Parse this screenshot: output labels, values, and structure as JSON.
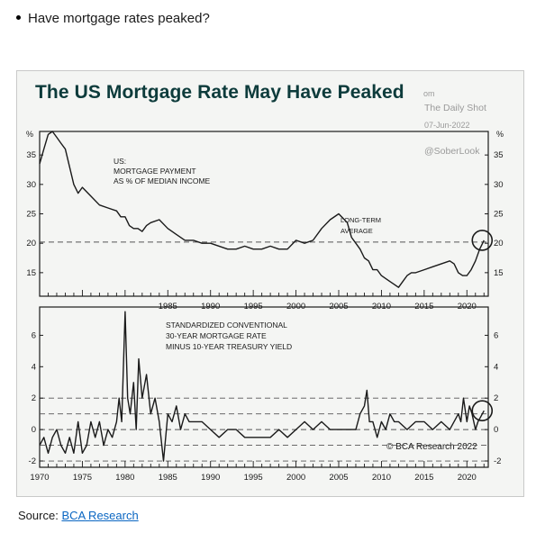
{
  "bullet": "Have mortgage rates peaked?",
  "figure": {
    "title": "The US Mortgage Rate May Have Peaked",
    "watermark": {
      "source_fragment": "om",
      "name": "The Daily Shot",
      "date": "07-Jun-2022",
      "handle": "@SoberLook"
    },
    "credit": "© BCA Research 2022"
  },
  "source": {
    "label": "Source:",
    "link": "BCA Research"
  },
  "chart_data": [
    {
      "type": "line",
      "panel": "top",
      "title": "US: MORTGAGE PAYMENT AS % OF MEDIAN INCOME",
      "title_lines": [
        "US:",
        "MORTGAGE PAYMENT",
        "AS % OF MEDIAN INCOME"
      ],
      "unit_left": "%",
      "unit_right": "%",
      "xlim": [
        1970,
        2022.5
      ],
      "ylim": [
        11,
        39
      ],
      "yticks": [
        15,
        20,
        25,
        30,
        35
      ],
      "xticks": [
        1985,
        1990,
        1995,
        2000,
        2005,
        2010,
        2015,
        2020
      ],
      "reference_line": {
        "label": [
          "LONG-TERM",
          "AVERAGE"
        ],
        "value": 20.2
      },
      "x": [
        1970,
        1970.5,
        1971,
        1971.5,
        1972,
        1972.5,
        1973,
        1973.5,
        1974,
        1974.5,
        1975,
        1976,
        1977,
        1978,
        1979,
        1979.5,
        1980,
        1980.5,
        1981,
        1981.5,
        1982,
        1982.5,
        1983,
        1984,
        1985,
        1986,
        1987,
        1988,
        1989,
        1990,
        1991,
        1992,
        1993,
        1994,
        1995,
        1996,
        1997,
        1998,
        1999,
        2000,
        2001,
        2002,
        2003,
        2004,
        2005,
        2006,
        2006.5,
        2007,
        2007.5,
        2008,
        2008.5,
        2009,
        2009.5,
        2010,
        2010.5,
        2011,
        2011.5,
        2012,
        2012.5,
        2013,
        2013.5,
        2014,
        2015,
        2016,
        2017,
        2018,
        2018.5,
        2019,
        2019.5,
        2020,
        2020.5,
        2021,
        2021.5,
        2022
      ],
      "y": [
        33.5,
        36,
        38.5,
        39,
        38,
        37,
        36,
        33,
        30,
        28.5,
        29.5,
        28,
        26.5,
        26,
        25.5,
        24.5,
        24.5,
        23,
        22.5,
        22.5,
        22,
        23,
        23.5,
        24,
        22.5,
        21.5,
        20.5,
        20.5,
        20,
        20,
        19.5,
        19,
        19,
        19.5,
        19,
        19,
        19.5,
        19,
        19,
        20.5,
        20,
        20.5,
        22.5,
        24,
        25,
        23.5,
        21,
        20,
        19,
        17.5,
        17,
        15.5,
        15.5,
        14.5,
        14,
        13.5,
        13,
        12.5,
        13.5,
        14.5,
        15,
        15,
        15.5,
        16,
        16.5,
        17,
        16.5,
        15,
        14.5,
        14.5,
        15.5,
        17,
        19,
        20.5
      ]
    },
    {
      "type": "line",
      "panel": "bottom",
      "title": "STANDARDIZED CONVENTIONAL 30-YEAR MORTGAGE RATE MINUS 10-YEAR TREASURY YIELD",
      "title_lines": [
        "STANDARDIZED CONVENTIONAL",
        "30-YEAR MORTGAGE RATE",
        "MINUS 10-YEAR TREASURY YIELD"
      ],
      "xlim": [
        1970,
        2022.5
      ],
      "ylim": [
        -2.4,
        7.8
      ],
      "yticks": [
        -2,
        0,
        2,
        4,
        6
      ],
      "xticks": [
        1970,
        1975,
        1980,
        1985,
        1990,
        1995,
        2000,
        2005,
        2010,
        2015,
        2020
      ],
      "reference_lines": [
        2,
        1,
        0,
        -1,
        -2
      ],
      "x": [
        1970,
        1970.5,
        1971,
        1971.5,
        1972,
        1972.5,
        1973,
        1973.5,
        1974,
        1974.5,
        1975,
        1975.5,
        1976,
        1976.5,
        1977,
        1977.5,
        1978,
        1978.5,
        1979,
        1979.3,
        1979.6,
        1980,
        1980.3,
        1980.6,
        1981,
        1981.3,
        1981.6,
        1982,
        1982.5,
        1983,
        1983.5,
        1984,
        1984.5,
        1985,
        1985.5,
        1986,
        1986.5,
        1987,
        1987.5,
        1988,
        1989,
        1990,
        1991,
        1992,
        1993,
        1994,
        1995,
        1996,
        1997,
        1998,
        1999,
        2000,
        2001,
        2002,
        2003,
        2004,
        2005,
        2006,
        2007,
        2007.5,
        2008,
        2008.3,
        2008.6,
        2009,
        2009.5,
        2010,
        2010.5,
        2011,
        2011.5,
        2012,
        2013,
        2014,
        2015,
        2016,
        2017,
        2018,
        2019,
        2019.3,
        2019.6,
        2020,
        2020.3,
        2020.6,
        2021,
        2021.3,
        2021.6,
        2022
      ],
      "y": [
        -1,
        -0.5,
        -1.5,
        -0.5,
        0,
        -1,
        -1.5,
        -0.5,
        -1.5,
        0.5,
        -1.5,
        -1,
        0.5,
        -0.5,
        0.5,
        -1,
        0,
        -0.5,
        0.5,
        2,
        0.5,
        7.5,
        2,
        1,
        3,
        0,
        4.5,
        2,
        3.5,
        1,
        2,
        0.5,
        -2,
        1,
        0.5,
        1.5,
        0,
        1,
        0.5,
        0.5,
        0.5,
        0,
        -0.5,
        0,
        0,
        -0.5,
        -0.5,
        -0.5,
        -0.5,
        0,
        -0.5,
        0,
        0.5,
        0,
        0.5,
        0,
        0,
        0,
        0,
        1,
        1.5,
        2.5,
        0.5,
        0.5,
        -0.5,
        0.5,
        0,
        1,
        0.5,
        0.5,
        0,
        0.5,
        0.5,
        0,
        0.5,
        0,
        1,
        0.5,
        2,
        0.5,
        1.5,
        1,
        0,
        0.5,
        0.8,
        1.2
      ]
    }
  ]
}
